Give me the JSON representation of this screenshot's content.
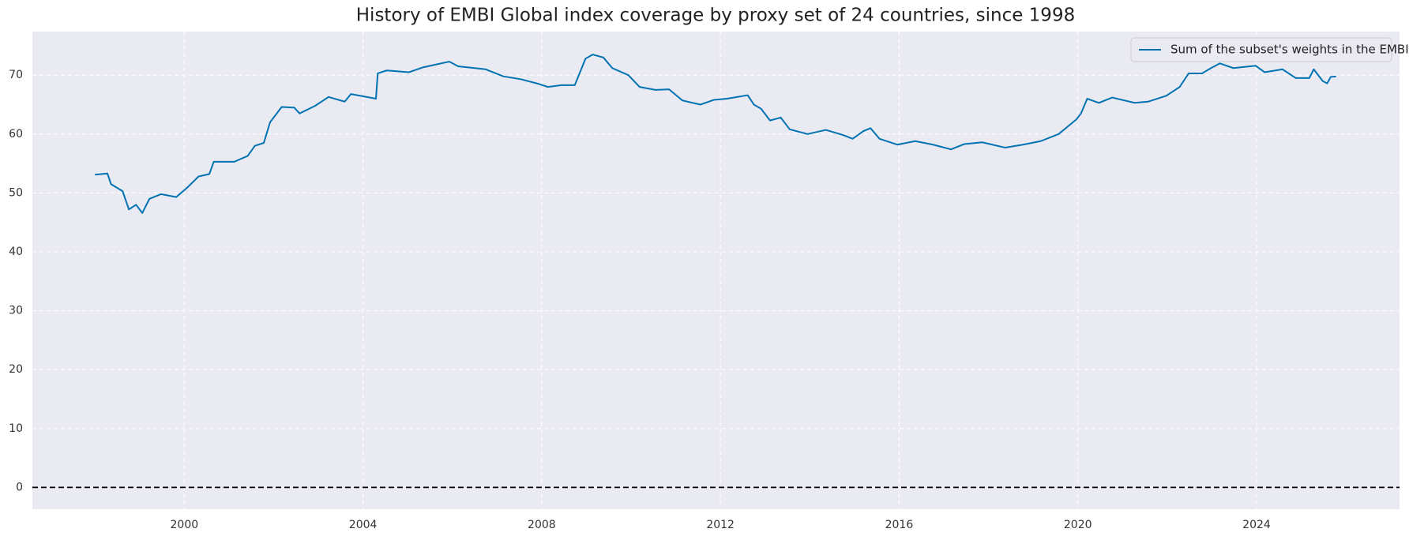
{
  "chart_data": {
    "type": "line",
    "title": "History of EMBI Global index coverage by proxy set of 24 countries, since 1998",
    "x": [
      1998.0,
      1998.28,
      1998.36,
      1998.62,
      1998.76,
      1998.92,
      1999.06,
      1999.22,
      1999.48,
      1999.82,
      2000.08,
      2000.32,
      2000.56,
      2000.66,
      2001.12,
      2001.42,
      2001.58,
      2001.78,
      2001.92,
      2002.18,
      2002.46,
      2002.58,
      2002.93,
      2003.23,
      2003.59,
      2003.73,
      2004.29,
      2004.33,
      2004.53,
      2005.03,
      2005.33,
      2005.63,
      2005.93,
      2006.13,
      2006.74,
      2007.14,
      2007.54,
      2007.94,
      2008.14,
      2008.44,
      2008.74,
      2008.98,
      2009.14,
      2009.38,
      2009.58,
      2009.94,
      2010.19,
      2010.55,
      2010.85,
      2011.15,
      2011.55,
      2011.85,
      2012.15,
      2012.61,
      2012.75,
      2012.91,
      2013.11,
      2013.35,
      2013.55,
      2013.95,
      2014.36,
      2014.76,
      2014.96,
      2015.2,
      2015.36,
      2015.56,
      2015.96,
      2016.36,
      2016.76,
      2017.16,
      2017.46,
      2017.86,
      2018.37,
      2018.77,
      2019.17,
      2019.57,
      2019.97,
      2020.07,
      2020.21,
      2020.47,
      2020.77,
      2021.27,
      2021.57,
      2021.98,
      2022.28,
      2022.48,
      2022.78,
      2022.98,
      2023.18,
      2023.48,
      2023.98,
      2024.18,
      2024.58,
      2024.88,
      2025.18,
      2025.28,
      2025.48,
      2025.58,
      2025.66,
      2025.78
    ],
    "series": [
      {
        "name": "Sum of the subset's weights in the EMBI Global",
        "color": "#0173b2",
        "values": [
          53.1,
          53.3,
          51.5,
          50.3,
          47.2,
          48,
          46.6,
          49,
          49.8,
          49.3,
          51,
          52.8,
          53.2,
          55.3,
          55.3,
          56.3,
          58,
          58.5,
          62,
          64.6,
          64.5,
          63.5,
          64.8,
          66.3,
          65.5,
          66.8,
          66,
          70.3,
          70.8,
          70.5,
          71.3,
          71.8,
          72.3,
          71.5,
          71,
          69.8,
          69.3,
          68.5,
          68,
          68.3,
          68.3,
          72.8,
          73.5,
          73,
          71.2,
          70,
          68,
          67.5,
          67.6,
          65.7,
          65,
          65.8,
          66,
          66.6,
          65,
          64.3,
          62.3,
          62.8,
          60.8,
          60,
          60.7,
          59.8,
          59.2,
          60.5,
          61,
          59.2,
          58.2,
          58.8,
          58.2,
          57.4,
          58.3,
          58.6,
          57.7,
          58.2,
          58.8,
          60,
          62.5,
          63.5,
          66,
          65.3,
          66.2,
          65.3,
          65.5,
          66.5,
          68,
          70.3,
          70.3,
          71.2,
          72,
          71.2,
          71.6,
          70.5,
          71,
          69.5,
          69.5,
          71,
          69,
          68.6,
          69.7,
          69.8
        ]
      }
    ],
    "hline": 0,
    "xlim": [
      1996.6,
      2027.2
    ],
    "xticks": [
      2000,
      2004,
      2008,
      2012,
      2016,
      2020,
      2024
    ],
    "ylim": [
      -3.7,
      77.4
    ],
    "yticks": [
      0,
      10,
      20,
      30,
      40,
      50,
      60,
      70
    ],
    "grid": true,
    "legend": "upper-right"
  }
}
